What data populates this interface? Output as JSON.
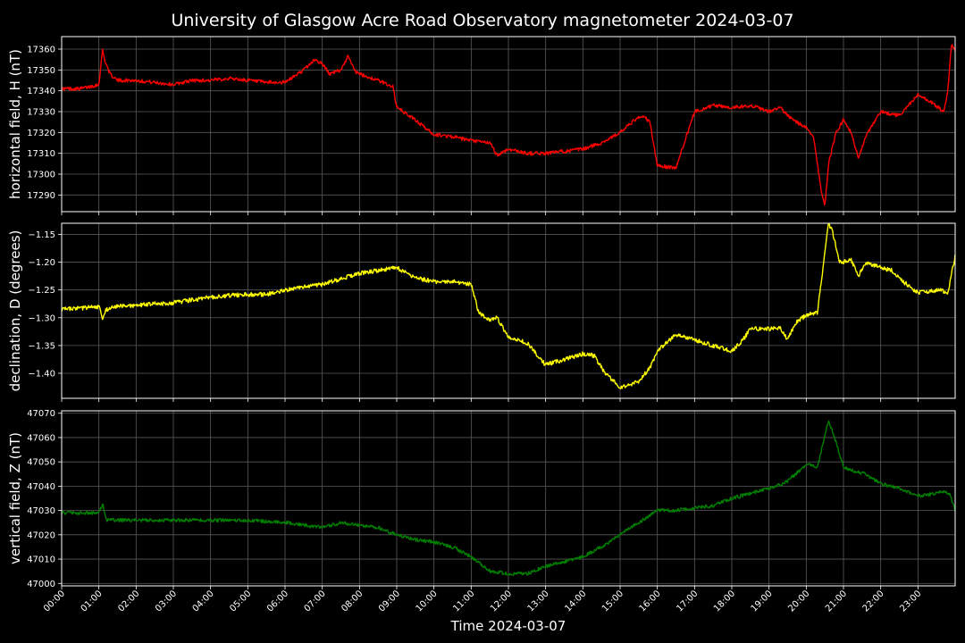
{
  "chart_data": {
    "type": "line",
    "title": "University of Glasgow Acre Road Observatory magnetometer 2024-03-07",
    "xlabel": "Time 2024-03-07",
    "x_tick_labels": [
      "00:00",
      "01:00",
      "02:00",
      "03:00",
      "04:00",
      "05:00",
      "06:00",
      "07:00",
      "08:00",
      "09:00",
      "10:00",
      "11:00",
      "12:00",
      "13:00",
      "14:00",
      "15:00",
      "16:00",
      "17:00",
      "18:00",
      "19:00",
      "20:00",
      "21:00",
      "22:00",
      "23:00"
    ],
    "xlim_hours": [
      0,
      24
    ],
    "grid": true,
    "panels": [
      {
        "name": "H",
        "ylabel": "horizontal field, H (nT)",
        "color": "#ff0000",
        "ylim": [
          17282,
          17366
        ],
        "yticks": [
          17290,
          17300,
          17310,
          17320,
          17330,
          17340,
          17350,
          17360
        ],
        "ytick_labels": [
          "17290",
          "17300",
          "17310",
          "17320",
          "17330",
          "17340",
          "17350",
          "17360"
        ],
        "x_hours": [
          0,
          0.5,
          1.0,
          1.1,
          1.15,
          1.3,
          1.5,
          2.0,
          2.5,
          3.0,
          3.5,
          4.0,
          4.5,
          5.0,
          5.5,
          6.0,
          6.5,
          6.8,
          7.0,
          7.2,
          7.5,
          7.7,
          7.9,
          8.0,
          8.5,
          8.9,
          9.0,
          9.5,
          10.0,
          10.5,
          11.0,
          11.5,
          11.7,
          12.0,
          12.5,
          13.0,
          13.5,
          14.0,
          14.5,
          15.0,
          15.4,
          15.6,
          15.8,
          16.0,
          16.5,
          17.0,
          17.5,
          18.0,
          18.5,
          19.0,
          19.3,
          19.5,
          20.0,
          20.2,
          20.3,
          20.4,
          20.5,
          20.6,
          20.8,
          21.0,
          21.2,
          21.4,
          21.6,
          22.0,
          22.5,
          23.0,
          23.4,
          23.7,
          23.8,
          23.9,
          24.0
        ],
        "values": [
          17341,
          17341,
          17343,
          17360,
          17355,
          17348,
          17345,
          17345,
          17344,
          17343,
          17345,
          17345,
          17346,
          17345,
          17344,
          17344,
          17350,
          17355,
          17353,
          17348,
          17350,
          17357,
          17349,
          17348,
          17345,
          17342,
          17332,
          17326,
          17319,
          17318,
          17316,
          17315,
          17309,
          17312,
          17310,
          17310,
          17311,
          17312,
          17315,
          17320,
          17326,
          17328,
          17325,
          17304,
          17303,
          17330,
          17333,
          17332,
          17333,
          17330,
          17332,
          17328,
          17322,
          17318,
          17305,
          17292,
          17285,
          17305,
          17320,
          17326,
          17320,
          17308,
          17318,
          17330,
          17328,
          17338,
          17334,
          17330,
          17340,
          17362,
          17360
        ]
      },
      {
        "name": "D",
        "ylabel": "declination, D (degrees)",
        "color": "#ffff00",
        "ylim": [
          -1.445,
          -1.13
        ],
        "yticks": [
          -1.4,
          -1.35,
          -1.3,
          -1.25,
          -1.2,
          -1.15
        ],
        "ytick_labels": [
          "−1.40",
          "−1.35",
          "−1.30",
          "−1.25",
          "−1.20",
          "−1.15"
        ],
        "x_hours": [
          0,
          0.5,
          1.0,
          1.1,
          1.2,
          1.5,
          2.0,
          2.5,
          3.0,
          3.5,
          4.0,
          4.5,
          5.0,
          5.5,
          6.0,
          6.5,
          7.0,
          7.5,
          8.0,
          8.5,
          9.0,
          9.5,
          10.0,
          10.5,
          11.0,
          11.2,
          11.5,
          11.7,
          12.0,
          12.5,
          13.0,
          13.5,
          14.0,
          14.3,
          14.6,
          15.0,
          15.5,
          15.8,
          16.0,
          16.5,
          17.0,
          17.5,
          18.0,
          18.3,
          18.5,
          19.0,
          19.3,
          19.5,
          19.7,
          20.0,
          20.3,
          20.6,
          20.7,
          20.9,
          21.0,
          21.2,
          21.4,
          21.6,
          22.0,
          22.3,
          22.5,
          23.0,
          23.6,
          23.8,
          24.0
        ],
        "values": [
          -1.285,
          -1.283,
          -1.28,
          -1.3,
          -1.285,
          -1.28,
          -1.278,
          -1.275,
          -1.273,
          -1.268,
          -1.263,
          -1.26,
          -1.258,
          -1.258,
          -1.25,
          -1.245,
          -1.24,
          -1.23,
          -1.22,
          -1.215,
          -1.21,
          -1.228,
          -1.235,
          -1.235,
          -1.24,
          -1.29,
          -1.305,
          -1.3,
          -1.335,
          -1.345,
          -1.385,
          -1.375,
          -1.365,
          -1.368,
          -1.4,
          -1.425,
          -1.415,
          -1.39,
          -1.36,
          -1.33,
          -1.34,
          -1.35,
          -1.36,
          -1.34,
          -1.32,
          -1.32,
          -1.318,
          -1.34,
          -1.31,
          -1.295,
          -1.29,
          -1.13,
          -1.145,
          -1.2,
          -1.2,
          -1.195,
          -1.225,
          -1.2,
          -1.21,
          -1.215,
          -1.23,
          -1.255,
          -1.25,
          -1.255,
          -1.19
        ]
      },
      {
        "name": "Z",
        "ylabel": "vertical field, Z (nT)",
        "color": "#008000",
        "ylim": [
          46999,
          47071
        ],
        "yticks": [
          47000,
          47010,
          47020,
          47030,
          47040,
          47050,
          47060,
          47070
        ],
        "ytick_labels": [
          "47000",
          "47010",
          "47020",
          "47030",
          "47040",
          "47050",
          "47060",
          "47070"
        ],
        "x_hours": [
          0,
          0.5,
          1.0,
          1.1,
          1.2,
          1.5,
          2.0,
          3.0,
          4.0,
          5.0,
          6.0,
          6.5,
          7.0,
          7.5,
          8.0,
          8.5,
          9.0,
          9.5,
          10.0,
          10.5,
          11.0,
          11.5,
          12.0,
          12.5,
          13.0,
          13.5,
          14.0,
          14.5,
          15.0,
          15.5,
          16.0,
          16.5,
          17.0,
          17.5,
          18.0,
          18.5,
          19.0,
          19.5,
          20.0,
          20.3,
          20.6,
          20.8,
          21.0,
          21.3,
          21.6,
          22.0,
          22.5,
          23.0,
          23.5,
          23.7,
          23.85,
          24.0
        ],
        "values": [
          47029,
          47029,
          47029,
          47033,
          47026,
          47026,
          47026,
          47026,
          47026,
          47026,
          47025,
          47024,
          47023,
          47025,
          47024,
          47023,
          47020,
          47018,
          47017,
          47015,
          47011,
          47005,
          47004,
          47004,
          47007,
          47009,
          47011,
          47015,
          47020,
          47025,
          47030,
          47030,
          47031,
          47032,
          47035,
          47037,
          47039,
          47042,
          47049,
          47048,
          47067,
          47058,
          47048,
          47046,
          47045,
          47041,
          47039,
          47036,
          47037,
          47038,
          47037,
          47030
        ]
      }
    ]
  }
}
